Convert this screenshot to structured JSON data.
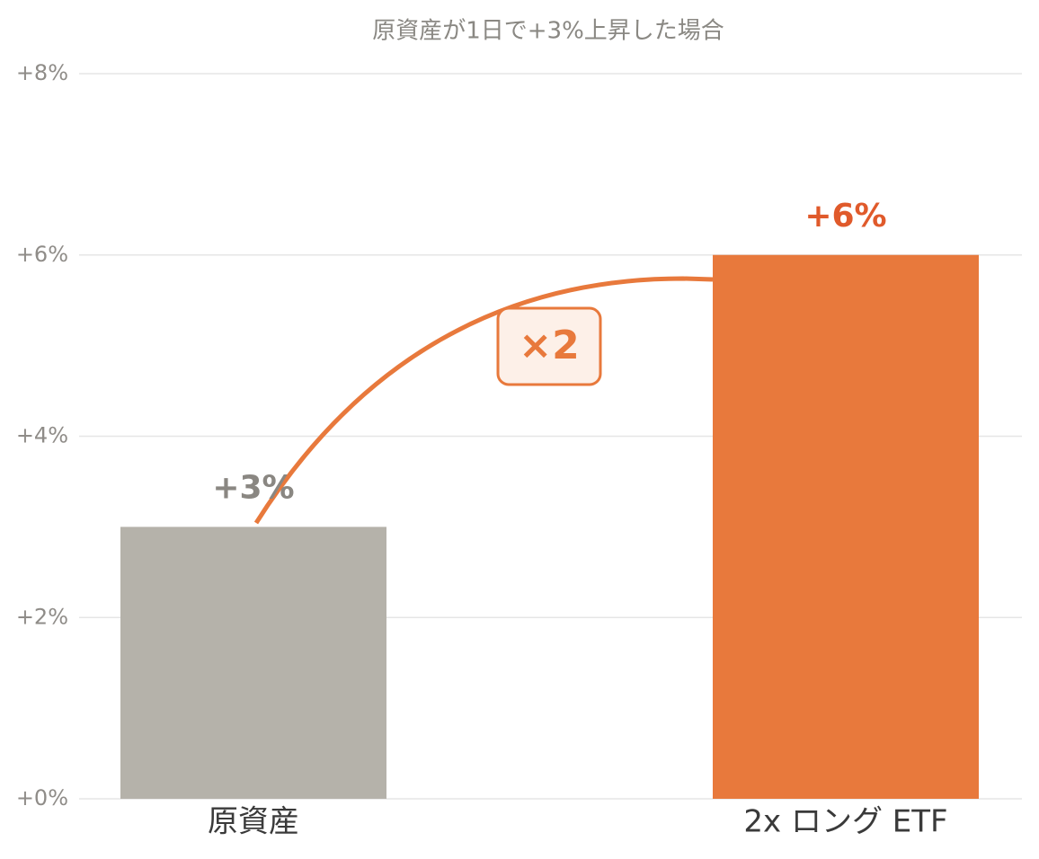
{
  "chart_data": {
    "type": "bar",
    "title": "原資産が1日で+3%上昇した場合",
    "categories": [
      "原資産",
      "2x ロング ETF"
    ],
    "values": [
      3,
      6
    ],
    "value_labels": [
      "+3%",
      "+6%"
    ],
    "colors": [
      "#b5b2aa",
      "#e8793c"
    ],
    "value_label_colors": [
      "#8a8782",
      "#e05a2b"
    ],
    "ylim": [
      0,
      8
    ],
    "yticks": [
      {
        "value": 0,
        "label": "+0%"
      },
      {
        "value": 2,
        "label": "+2%"
      },
      {
        "value": 4,
        "label": "+4%"
      },
      {
        "value": 6,
        "label": "+6%"
      },
      {
        "value": 8,
        "label": "+8%"
      }
    ],
    "grid": true,
    "annotation": "×2"
  }
}
